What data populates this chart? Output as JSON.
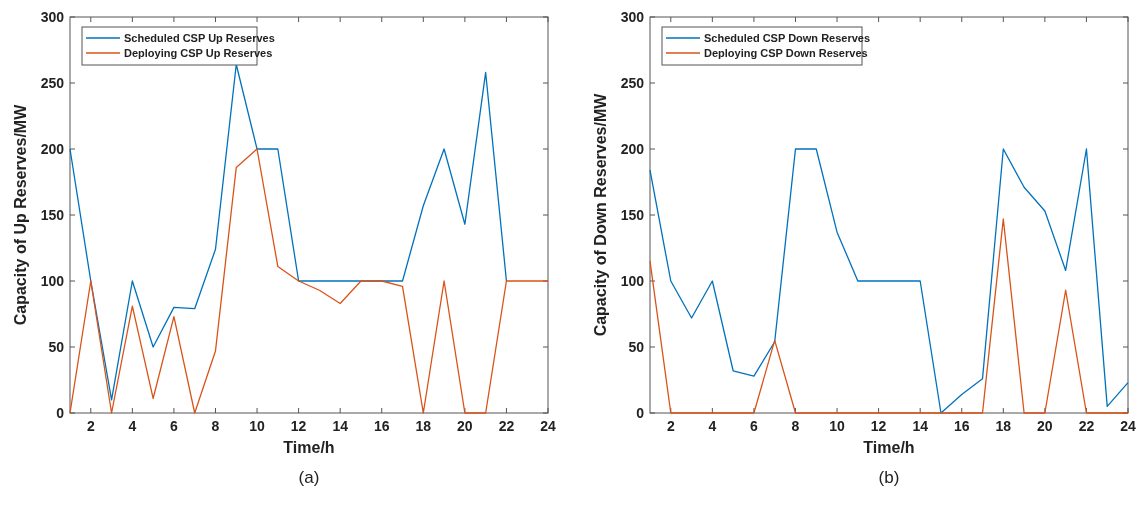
{
  "chart_data": [
    {
      "type": "line",
      "xlabel": "Time/h",
      "ylabel": "Capacity of Up Reserves/MW",
      "x": [
        1,
        2,
        3,
        4,
        5,
        6,
        7,
        8,
        9,
        10,
        11,
        12,
        13,
        14,
        15,
        16,
        17,
        18,
        19,
        20,
        21,
        22,
        23,
        24
      ],
      "xlim": [
        1,
        24
      ],
      "xticks": [
        2,
        4,
        6,
        8,
        10,
        12,
        14,
        16,
        18,
        20,
        22,
        24
      ],
      "ylim": [
        0,
        300
      ],
      "yticks": [
        0,
        50,
        100,
        150,
        200,
        250,
        300
      ],
      "legend": "top left",
      "grid": false,
      "annotations": [
        "(a)"
      ],
      "series": [
        {
          "name": "Scheduled CSP Up Reserves",
          "color": "#0072bd",
          "values": [
            200,
            100,
            10,
            100,
            50,
            80,
            79,
            124,
            264,
            200,
            200,
            100,
            100,
            100,
            100,
            100,
            100,
            157,
            200,
            143,
            258,
            100,
            null,
            null
          ]
        },
        {
          "name": "Deploying CSP Up Reserves",
          "color": "#d95319",
          "values": [
            0,
            100,
            0,
            81,
            11,
            73,
            0,
            47,
            186,
            200,
            111,
            100,
            93,
            83,
            100,
            100,
            96,
            0,
            100,
            0,
            0,
            100,
            100,
            100
          ]
        }
      ]
    },
    {
      "type": "line",
      "xlabel": "Time/h",
      "ylabel": "Capacity of Down Reserves/MW",
      "x": [
        1,
        2,
        3,
        4,
        5,
        6,
        7,
        8,
        9,
        10,
        11,
        12,
        13,
        14,
        15,
        16,
        17,
        18,
        19,
        20,
        21,
        22,
        23,
        24
      ],
      "xlim": [
        1,
        24
      ],
      "xticks": [
        2,
        4,
        6,
        8,
        10,
        12,
        14,
        16,
        18,
        20,
        22,
        24
      ],
      "ylim": [
        0,
        300
      ],
      "yticks": [
        0,
        50,
        100,
        150,
        200,
        250,
        300
      ],
      "legend": "top left",
      "grid": false,
      "annotations": [
        "(b)"
      ],
      "series": [
        {
          "name": "Scheduled CSP Down Reserves",
          "color": "#0072bd",
          "values": [
            184,
            100,
            72,
            100,
            32,
            28,
            54,
            200,
            200,
            137,
            100,
            100,
            100,
            100,
            0,
            14,
            26,
            200,
            171,
            153,
            108,
            200,
            5,
            23
          ]
        },
        {
          "name": "Deploying CSP Down Reserves",
          "color": "#d95319",
          "values": [
            115,
            0,
            0,
            0,
            0,
            0,
            55,
            0,
            0,
            0,
            0,
            0,
            0,
            0,
            0,
            0,
            0,
            147,
            0,
            0,
            93,
            0,
            0,
            0
          ]
        }
      ]
    }
  ]
}
